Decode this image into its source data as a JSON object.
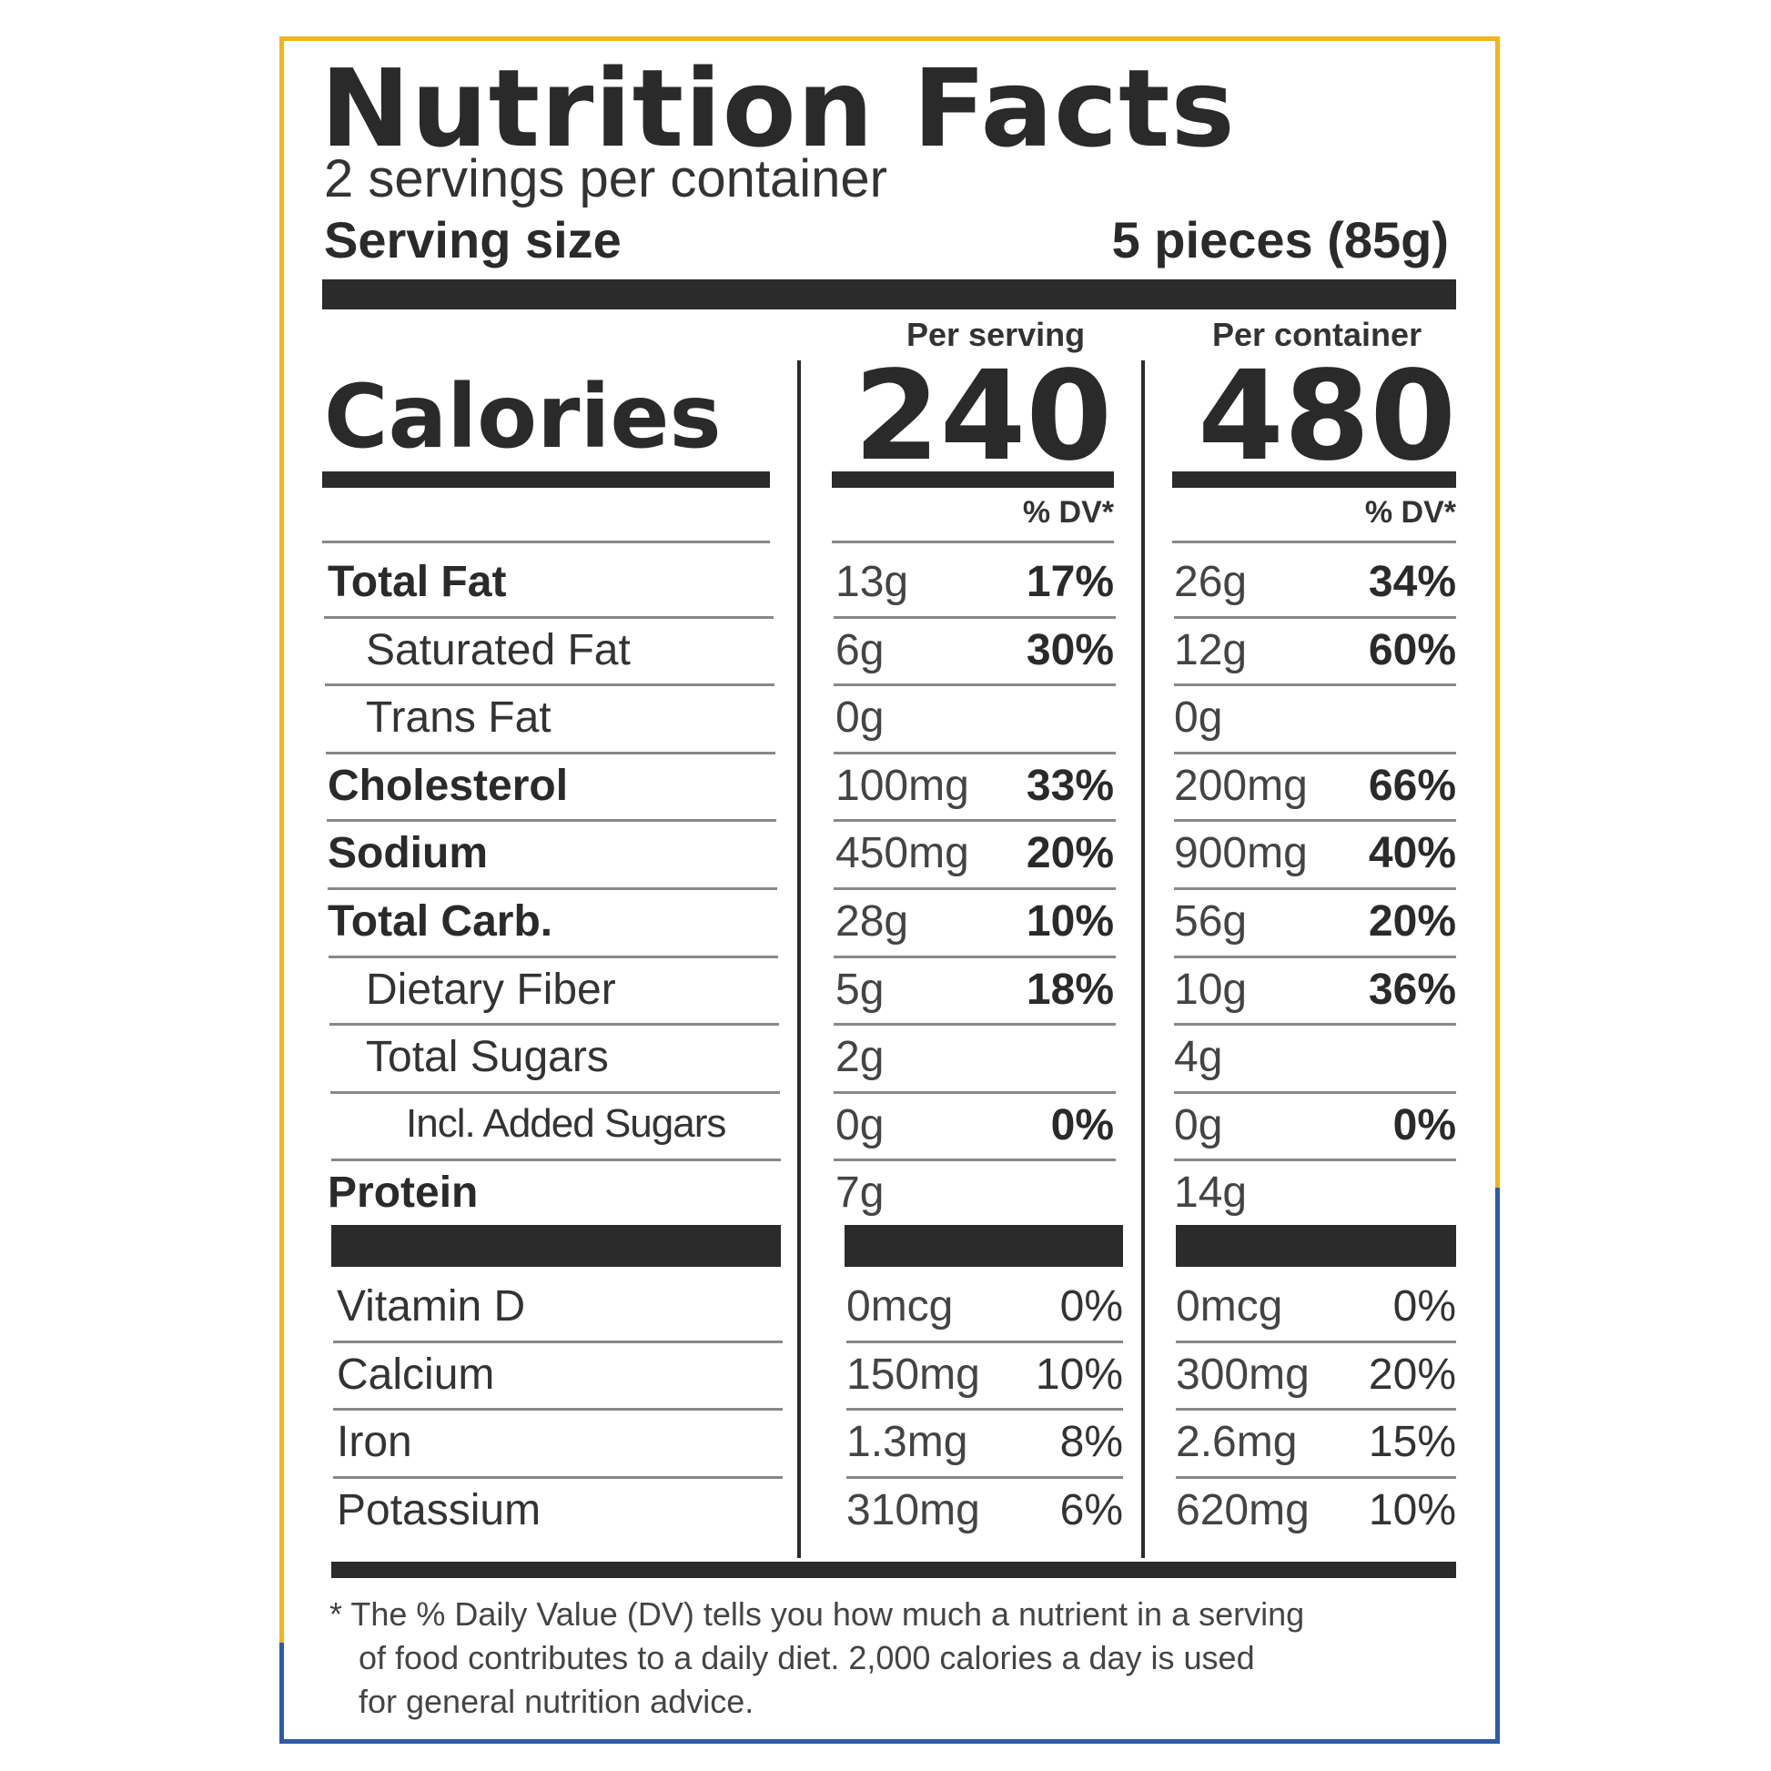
{
  "title": "Nutrition Facts",
  "servings_per_container": "2 servings per container",
  "serving_size_label": "Serving size",
  "serving_size_value": "5 pieces (85g)",
  "columns": {
    "per_serving": "Per serving",
    "per_container": "Per container",
    "dv_label": "% DV*"
  },
  "calories": {
    "label": "Calories",
    "per_serving": "240",
    "per_container": "480"
  },
  "nutrients": [
    {
      "label": "Total Fat",
      "serving_amount": "13g",
      "serving_dv": "17%",
      "container_amount": "26g",
      "container_dv": "34%"
    },
    {
      "label": "Saturated Fat",
      "serving_amount": "6g",
      "serving_dv": "30%",
      "container_amount": "12g",
      "container_dv": "60%"
    },
    {
      "label": "Trans Fat",
      "serving_amount": "0g",
      "serving_dv": "",
      "container_amount": "0g",
      "container_dv": ""
    },
    {
      "label": "Cholesterol",
      "serving_amount": "100mg",
      "serving_dv": "33%",
      "container_amount": "200mg",
      "container_dv": "66%"
    },
    {
      "label": "Sodium",
      "serving_amount": "450mg",
      "serving_dv": "20%",
      "container_amount": "900mg",
      "container_dv": "40%"
    },
    {
      "label": "Total Carb.",
      "serving_amount": "28g",
      "serving_dv": "10%",
      "container_amount": "56g",
      "container_dv": "20%"
    },
    {
      "label": "Dietary Fiber",
      "serving_amount": "5g",
      "serving_dv": "18%",
      "container_amount": "10g",
      "container_dv": "36%"
    },
    {
      "label": "Total Sugars",
      "serving_amount": "2g",
      "serving_dv": "",
      "container_amount": "4g",
      "container_dv": ""
    },
    {
      "label": "Incl. Added Sugars",
      "serving_amount": "0g",
      "serving_dv": "0%",
      "container_amount": "0g",
      "container_dv": "0%"
    },
    {
      "label": "Protein",
      "serving_amount": "7g",
      "serving_dv": "",
      "container_amount": "14g",
      "container_dv": ""
    }
  ],
  "vitamins": [
    {
      "label": "Vitamin D",
      "serving_amount": "0mcg",
      "serving_dv": "0%",
      "container_amount": "0mcg",
      "container_dv": "0%"
    },
    {
      "label": "Calcium",
      "serving_amount": "150mg",
      "serving_dv": "10%",
      "container_amount": "300mg",
      "container_dv": "20%"
    },
    {
      "label": "Iron",
      "serving_amount": "1.3mg",
      "serving_dv": "8%",
      "container_amount": "2.6mg",
      "container_dv": "15%"
    },
    {
      "label": "Potassium",
      "serving_amount": "310mg",
      "serving_dv": "6%",
      "container_amount": "620mg",
      "container_dv": "10%"
    }
  ],
  "footnote": [
    "* The % Daily Value (DV) tells you how much a nutrient in a serving",
    "of food contributes to a daily diet. 2,000 calories a day is used",
    "for general nutrition advice."
  ],
  "colors": {
    "border_top": "#f2b31b",
    "border_bottom": "#2d5aa6",
    "ink": "#2b2b2b"
  }
}
